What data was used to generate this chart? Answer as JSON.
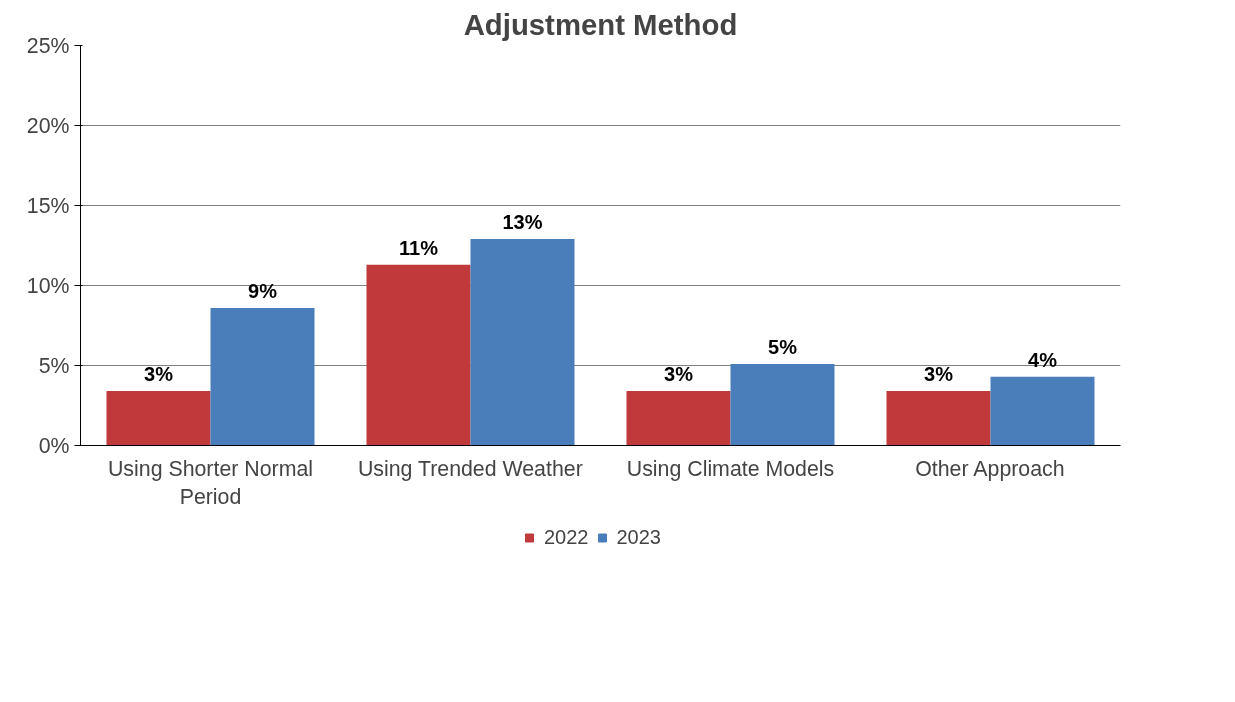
{
  "chart_data": {
    "type": "bar",
    "title": "Adjustment Method",
    "categories": [
      "Using Shorter Normal Period",
      "Using Trended Weather",
      "Using Climate Models",
      "Other Approach"
    ],
    "series": [
      {
        "name": "2022",
        "color": "#c0393b",
        "values": [
          3.4,
          11.3,
          3.4,
          3.4
        ],
        "value_labels": [
          "3%",
          "11%",
          "3%",
          "3%"
        ]
      },
      {
        "name": "2023",
        "color": "#4a7ebb",
        "values": [
          8.6,
          12.9,
          5.1,
          4.3
        ],
        "value_labels": [
          "9%",
          "13%",
          "5%",
          "4%"
        ]
      }
    ],
    "ylim": [
      0,
      25
    ],
    "yticks": [
      {
        "value": 0,
        "label": "0%"
      },
      {
        "value": 5,
        "label": "5%"
      },
      {
        "value": 10,
        "label": "10%"
      },
      {
        "value": 15,
        "label": "15%"
      },
      {
        "value": 20,
        "label": "20%"
      },
      {
        "value": 25,
        "label": "25%"
      }
    ],
    "grid": "y",
    "legend": "bottom"
  }
}
